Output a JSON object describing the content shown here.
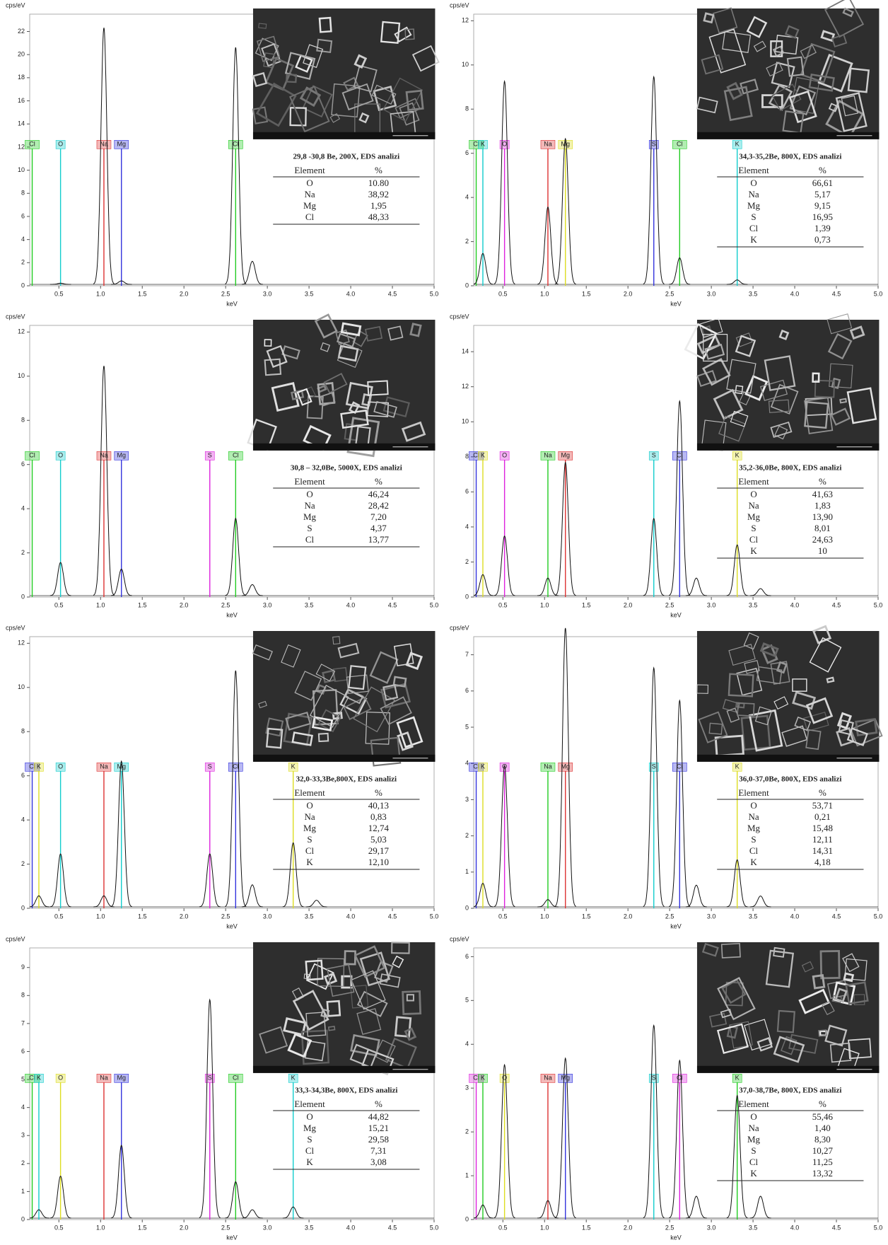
{
  "chart_data": [
    {
      "type": "spectrum",
      "title": "29,8 -30,8 Be, 200X, EDS analizi",
      "y_label": "cps/eV",
      "x_label": "keV",
      "xlim": [
        0.15,
        5.0
      ],
      "xticks": [
        0.5,
        {
          "value": 1,
          "label": "1.0"
        },
        1.5,
        {
          "value": 2,
          "label": "2.0"
        },
        2.5,
        {
          "value": 3,
          "label": "3.0"
        },
        3.5,
        {
          "value": 4,
          "label": "4.0"
        },
        4.5,
        {
          "value": 5,
          "label": "5.0"
        }
      ],
      "ylim": [
        0,
        23.5
      ],
      "yticks": [
        0,
        2,
        4,
        6,
        8,
        10,
        12,
        14,
        16,
        18,
        20,
        22
      ],
      "markers": [
        {
          "label": "Cl",
          "x": 0.18,
          "color": "#22cc22"
        },
        {
          "label": "O",
          "x": 0.52,
          "color": "#11cccc"
        },
        {
          "label": "Na",
          "x": 1.04,
          "color": "#dd3333"
        },
        {
          "label": "Mg",
          "x": 1.25,
          "color": "#3333dd"
        },
        {
          "label": "Cl",
          "x": 2.62,
          "color": "#22cc22"
        }
      ],
      "peaks": [
        {
          "x": 0.52,
          "y": 0.1
        },
        {
          "x": 1.04,
          "y": 22.2
        },
        {
          "x": 1.25,
          "y": 0.3
        },
        {
          "x": 2.62,
          "y": 20.5
        },
        {
          "x": 2.82,
          "y": 2
        }
      ],
      "table": {
        "header": [
          "Element",
          "%"
        ],
        "rows": [
          [
            "O",
            "10.80"
          ],
          [
            "Na",
            "38,92"
          ],
          [
            "Mg",
            "1,95"
          ],
          [
            "Cl",
            "48,33"
          ]
        ]
      }
    },
    {
      "type": "spectrum",
      "title": "34,3-35,2Be, 800X, EDS analizi",
      "y_label": "cps/eV",
      "x_label": "keV",
      "xlim": [
        0.15,
        5.0
      ],
      "xticks": [
        0.5,
        {
          "value": 1,
          "label": "1.0"
        },
        1.5,
        {
          "value": 2,
          "label": "2.0"
        },
        2.5,
        {
          "value": 3,
          "label": "3.0"
        },
        3.5,
        {
          "value": 4,
          "label": "4.0"
        },
        4.5,
        {
          "value": 5,
          "label": "5.0"
        }
      ],
      "ylim": [
        0,
        12.3
      ],
      "yticks": [
        0,
        2,
        4,
        6,
        8,
        10,
        12
      ],
      "markers": [
        {
          "label": "Cl",
          "x": 0.18,
          "color": "#22cc22"
        },
        {
          "label": "K",
          "x": 0.26,
          "color": "#11cccc"
        },
        {
          "label": "O",
          "x": 0.52,
          "color": "#dd22dd"
        },
        {
          "label": "Na",
          "x": 1.04,
          "color": "#dd3333"
        },
        {
          "label": "Mg",
          "x": 1.25,
          "color": "#dddd22"
        },
        {
          "label": "S",
          "x": 2.31,
          "color": "#3333dd"
        },
        {
          "label": "Cl",
          "x": 2.62,
          "color": "#22cc22"
        },
        {
          "label": "K",
          "x": 3.31,
          "color": "#11cccc"
        }
      ],
      "peaks": [
        {
          "x": 0.26,
          "y": 1.4
        },
        {
          "x": 0.52,
          "y": 9.2
        },
        {
          "x": 1.04,
          "y": 3.5
        },
        {
          "x": 1.25,
          "y": 6.6
        },
        {
          "x": 2.31,
          "y": 9.4
        },
        {
          "x": 2.62,
          "y": 1.2
        },
        {
          "x": 3.31,
          "y": 0.2
        }
      ],
      "table": {
        "header": [
          "Element",
          "%"
        ],
        "rows": [
          [
            "O",
            "66,61"
          ],
          [
            "Na",
            "5,17"
          ],
          [
            "Mg",
            "9,15"
          ],
          [
            "S",
            "16,95"
          ],
          [
            "Cl",
            "1,39"
          ],
          [
            "K",
            "0,73"
          ]
        ]
      }
    },
    {
      "type": "spectrum",
      "title": "30,8 – 32,0Be, 5000X, EDS analizi",
      "y_label": "cps/eV",
      "x_label": "keV",
      "xlim": [
        0.15,
        5.0
      ],
      "xticks": [
        0.5,
        {
          "value": 1,
          "label": "1.0"
        },
        1.5,
        {
          "value": 2,
          "label": "2.0"
        },
        2.5,
        {
          "value": 3,
          "label": "3.0"
        },
        3.5,
        {
          "value": 4,
          "label": "4.0"
        },
        4.5,
        {
          "value": 5,
          "label": "5.0"
        }
      ],
      "ylim": [
        0,
        12.3
      ],
      "yticks": [
        0,
        2,
        4,
        6,
        8,
        10,
        12
      ],
      "markers": [
        {
          "label": "Cl",
          "x": 0.18,
          "color": "#22cc22"
        },
        {
          "label": "O",
          "x": 0.52,
          "color": "#11cccc"
        },
        {
          "label": "Na",
          "x": 1.04,
          "color": "#dd3333"
        },
        {
          "label": "Mg",
          "x": 1.25,
          "color": "#3333dd"
        },
        {
          "label": "S",
          "x": 2.31,
          "color": "#dd22dd"
        },
        {
          "label": "Cl",
          "x": 2.62,
          "color": "#22cc22"
        }
      ],
      "peaks": [
        {
          "x": 0.52,
          "y": 1.5
        },
        {
          "x": 1.04,
          "y": 10.4
        },
        {
          "x": 1.25,
          "y": 1.2
        },
        {
          "x": 2.62,
          "y": 3.5
        },
        {
          "x": 2.82,
          "y": 0.5
        }
      ],
      "table": {
        "header": [
          "Element",
          "%"
        ],
        "rows": [
          [
            "O",
            "46,24"
          ],
          [
            "Na",
            "28,42"
          ],
          [
            "Mg",
            "7,20"
          ],
          [
            "S",
            "4,37"
          ],
          [
            "Cl",
            "13,77"
          ]
        ]
      }
    },
    {
      "type": "spectrum",
      "title": "35,2-36,0Be, 800X, EDS analizi",
      "y_label": "cps/eV",
      "x_label": "keV",
      "xlim": [
        0.15,
        5.0
      ],
      "xticks": [
        0.5,
        {
          "value": 1,
          "label": "1.0"
        },
        1.5,
        {
          "value": 2,
          "label": "2.0"
        },
        2.5,
        {
          "value": 3,
          "label": "3.0"
        },
        3.5,
        {
          "value": 4,
          "label": "4.0"
        },
        4.5,
        {
          "value": 5,
          "label": "5.0"
        }
      ],
      "ylim": [
        0,
        15.5
      ],
      "yticks": [
        0,
        2,
        4,
        6,
        8,
        10,
        12,
        14
      ],
      "markers": [
        {
          "label": "Cl",
          "x": 0.18,
          "color": "#3333dd"
        },
        {
          "label": "K",
          "x": 0.26,
          "color": "#dddd22"
        },
        {
          "label": "O",
          "x": 0.52,
          "color": "#dd22dd"
        },
        {
          "label": "Na",
          "x": 1.04,
          "color": "#22cc22"
        },
        {
          "label": "Mg",
          "x": 1.25,
          "color": "#dd3333"
        },
        {
          "label": "S",
          "x": 2.31,
          "color": "#11cccc"
        },
        {
          "label": "Cl",
          "x": 2.62,
          "color": "#3333dd"
        },
        {
          "label": "K",
          "x": 3.31,
          "color": "#dddd22"
        }
      ],
      "peaks": [
        {
          "x": 0.26,
          "y": 1.2
        },
        {
          "x": 0.52,
          "y": 3.4
        },
        {
          "x": 1.04,
          "y": 1
        },
        {
          "x": 1.25,
          "y": 7.6
        },
        {
          "x": 2.31,
          "y": 4.4
        },
        {
          "x": 2.62,
          "y": 11.1
        },
        {
          "x": 2.82,
          "y": 1
        },
        {
          "x": 3.31,
          "y": 2.9
        },
        {
          "x": 3.59,
          "y": 0.4
        }
      ],
      "table": {
        "header": [
          "Element",
          "%"
        ],
        "rows": [
          [
            "O",
            "41,63"
          ],
          [
            "Na",
            "1,83"
          ],
          [
            "Mg",
            "13,90"
          ],
          [
            "S",
            "8,01"
          ],
          [
            "Cl",
            "24,63"
          ],
          [
            "K",
            "10"
          ]
        ]
      }
    },
    {
      "type": "spectrum",
      "title": "32,0-33,3Be,800X, EDS analizi",
      "y_label": "cps/eV",
      "x_label": "keV",
      "xlim": [
        0.15,
        5.0
      ],
      "xticks": [
        0.5,
        {
          "value": 1,
          "label": "1.0"
        },
        1.5,
        {
          "value": 2,
          "label": "2.0"
        },
        2.5,
        {
          "value": 3,
          "label": "3.0"
        },
        3.5,
        {
          "value": 4,
          "label": "4.0"
        },
        4.5,
        {
          "value": 5,
          "label": "5.0"
        }
      ],
      "ylim": [
        0,
        12.3
      ],
      "yticks": [
        0,
        2,
        4,
        6,
        8,
        10,
        12
      ],
      "markers": [
        {
          "label": "Cl",
          "x": 0.18,
          "color": "#3333dd"
        },
        {
          "label": "K",
          "x": 0.26,
          "color": "#dddd22"
        },
        {
          "label": "O",
          "x": 0.52,
          "color": "#11cccc"
        },
        {
          "label": "Na",
          "x": 1.04,
          "color": "#dd3333"
        },
        {
          "label": "Mg",
          "x": 1.25,
          "color": "#11cccc"
        },
        {
          "label": "S",
          "x": 2.31,
          "color": "#dd22dd"
        },
        {
          "label": "Cl",
          "x": 2.62,
          "color": "#3333dd"
        },
        {
          "label": "K",
          "x": 3.31,
          "color": "#dddd22"
        }
      ],
      "peaks": [
        {
          "x": 0.26,
          "y": 0.5
        },
        {
          "x": 0.52,
          "y": 2.4
        },
        {
          "x": 1.04,
          "y": 0.5
        },
        {
          "x": 1.25,
          "y": 6.6
        },
        {
          "x": 2.31,
          "y": 2.4
        },
        {
          "x": 2.62,
          "y": 10.7
        },
        {
          "x": 2.82,
          "y": 1
        },
        {
          "x": 3.31,
          "y": 2.9
        },
        {
          "x": 3.59,
          "y": 0.3
        }
      ],
      "table": {
        "header": [
          "Element",
          "%"
        ],
        "rows": [
          [
            "O",
            "40,13"
          ],
          [
            "Na",
            "0,83"
          ],
          [
            "Mg",
            "12,74"
          ],
          [
            "S",
            "5,03"
          ],
          [
            "Cl",
            "29,17"
          ],
          [
            "K",
            "12,10"
          ]
        ]
      }
    },
    {
      "type": "spectrum",
      "title": "36,0-37,0Be, 800X, EDS analizi",
      "y_label": "cps/eV",
      "x_label": "keV",
      "xlim": [
        0.15,
        5.0
      ],
      "xticks": [
        0.5,
        {
          "value": 1,
          "label": "1.0"
        },
        1.5,
        {
          "value": 2,
          "label": "2.0"
        },
        2.5,
        {
          "value": 3,
          "label": "3.0"
        },
        3.5,
        {
          "value": 4,
          "label": "4.0"
        },
        4.5,
        {
          "value": 5,
          "label": "5.0"
        }
      ],
      "ylim": [
        0,
        7.5
      ],
      "yticks": [
        0,
        1,
        2,
        3,
        4,
        5,
        6,
        7
      ],
      "markers": [
        {
          "label": "Cl",
          "x": 0.18,
          "color": "#3333dd"
        },
        {
          "label": "K",
          "x": 0.26,
          "color": "#dddd22"
        },
        {
          "label": "O",
          "x": 0.52,
          "color": "#dd22dd"
        },
        {
          "label": "Na",
          "x": 1.04,
          "color": "#22cc22"
        },
        {
          "label": "Mg",
          "x": 1.25,
          "color": "#dd3333"
        },
        {
          "label": "S",
          "x": 2.31,
          "color": "#11cccc"
        },
        {
          "label": "Cl",
          "x": 2.62,
          "color": "#3333dd"
        },
        {
          "label": "K",
          "x": 3.31,
          "color": "#dddd22"
        }
      ],
      "peaks": [
        {
          "x": 0.26,
          "y": 0.65
        },
        {
          "x": 0.52,
          "y": 3.9
        },
        {
          "x": 1.04,
          "y": 0.2
        },
        {
          "x": 1.25,
          "y": 7.7
        },
        {
          "x": 2.31,
          "y": 6.6
        },
        {
          "x": 2.62,
          "y": 5.7
        },
        {
          "x": 2.82,
          "y": 0.6
        },
        {
          "x": 3.31,
          "y": 1.3
        },
        {
          "x": 3.59,
          "y": 0.3
        }
      ],
      "table": {
        "header": [
          "Element",
          "%"
        ],
        "rows": [
          [
            "O",
            "53,71"
          ],
          [
            "Na",
            "0,21"
          ],
          [
            "Mg",
            "15,48"
          ],
          [
            "S",
            "12,11"
          ],
          [
            "Cl",
            "14,31"
          ],
          [
            "K",
            "4,18"
          ]
        ]
      }
    },
    {
      "type": "spectrum",
      "title": "33,3-34,3Be, 800X, EDS analizi",
      "y_label": "cps/eV",
      "x_label": "keV",
      "xlim": [
        0.15,
        5.0
      ],
      "xticks": [
        0.5,
        {
          "value": 1,
          "label": "1.0"
        },
        1.5,
        {
          "value": 2,
          "label": "2.0"
        },
        2.5,
        {
          "value": 3,
          "label": "3.0"
        },
        3.5,
        {
          "value": 4,
          "label": "4.0"
        },
        4.5,
        {
          "value": 5,
          "label": "5.0"
        }
      ],
      "ylim": [
        0,
        9.7
      ],
      "yticks": [
        0,
        1,
        2,
        3,
        4,
        5,
        6,
        7,
        8,
        9
      ],
      "markers": [
        {
          "label": "Cl",
          "x": 0.18,
          "color": "#22cc22"
        },
        {
          "label": "K",
          "x": 0.26,
          "color": "#11cccc"
        },
        {
          "label": "O",
          "x": 0.52,
          "color": "#dddd22"
        },
        {
          "label": "Na",
          "x": 1.04,
          "color": "#dd3333"
        },
        {
          "label": "Mg",
          "x": 1.25,
          "color": "#3333dd"
        },
        {
          "label": "S",
          "x": 2.31,
          "color": "#dd22dd"
        },
        {
          "label": "Cl",
          "x": 2.62,
          "color": "#22cc22"
        },
        {
          "label": "K",
          "x": 3.31,
          "color": "#11cccc"
        }
      ],
      "peaks": [
        {
          "x": 0.26,
          "y": 0.3
        },
        {
          "x": 0.52,
          "y": 1.5
        },
        {
          "x": 1.25,
          "y": 2.6
        },
        {
          "x": 2.31,
          "y": 7.8
        },
        {
          "x": 2.62,
          "y": 1.3
        },
        {
          "x": 2.82,
          "y": 0.3
        },
        {
          "x": 3.31,
          "y": 0.4
        }
      ],
      "table": {
        "header": [
          "Element",
          "%"
        ],
        "rows": [
          [
            "O",
            "44,82"
          ],
          [
            "Mg",
            "15,21"
          ],
          [
            "S",
            "29,58"
          ],
          [
            "Cl",
            "7,31"
          ],
          [
            "K",
            "3,08"
          ]
        ]
      }
    },
    {
      "type": "spectrum",
      "title": "37,0-38,7Be, 800X, EDS analizi",
      "y_label": "cps/eV",
      "x_label": "keV",
      "xlim": [
        0.15,
        5.0
      ],
      "xticks": [
        0.5,
        {
          "value": 1,
          "label": "1.0"
        },
        1.5,
        {
          "value": 2,
          "label": "2.0"
        },
        2.5,
        {
          "value": 3,
          "label": "3.0"
        },
        3.5,
        {
          "value": 4,
          "label": "4.0"
        },
        4.5,
        {
          "value": 5,
          "label": "5.0"
        }
      ],
      "ylim": [
        0,
        6.2
      ],
      "yticks": [
        0,
        1,
        2,
        3,
        4,
        5,
        6
      ],
      "markers": [
        {
          "label": "Cl",
          "x": 0.18,
          "color": "#dd22dd"
        },
        {
          "label": "K",
          "x": 0.26,
          "color": "#22cc22"
        },
        {
          "label": "O",
          "x": 0.52,
          "color": "#dddd22"
        },
        {
          "label": "Na",
          "x": 1.04,
          "color": "#dd3333"
        },
        {
          "label": "Mg",
          "x": 1.25,
          "color": "#3333dd"
        },
        {
          "label": "S",
          "x": 2.31,
          "color": "#11cccc"
        },
        {
          "label": "Cl",
          "x": 2.62,
          "color": "#dd22dd"
        },
        {
          "label": "K",
          "x": 3.31,
          "color": "#22cc22"
        }
      ],
      "peaks": [
        {
          "x": 0.26,
          "y": 0.3
        },
        {
          "x": 0.52,
          "y": 3.5
        },
        {
          "x": 1.04,
          "y": 0.4
        },
        {
          "x": 1.25,
          "y": 3.65
        },
        {
          "x": 2.31,
          "y": 4.4
        },
        {
          "x": 2.62,
          "y": 3.6
        },
        {
          "x": 2.82,
          "y": 0.5
        },
        {
          "x": 3.31,
          "y": 2.8
        },
        {
          "x": 3.59,
          "y": 0.5
        }
      ],
      "table": {
        "header": [
          "Element",
          "%"
        ],
        "rows": [
          [
            "O",
            "55,46"
          ],
          [
            "Na",
            "1,40"
          ],
          [
            "Mg",
            "8,30"
          ],
          [
            "S",
            "10,27"
          ],
          [
            "Cl",
            "11,25"
          ],
          [
            "K",
            "13,32"
          ]
        ]
      }
    }
  ]
}
